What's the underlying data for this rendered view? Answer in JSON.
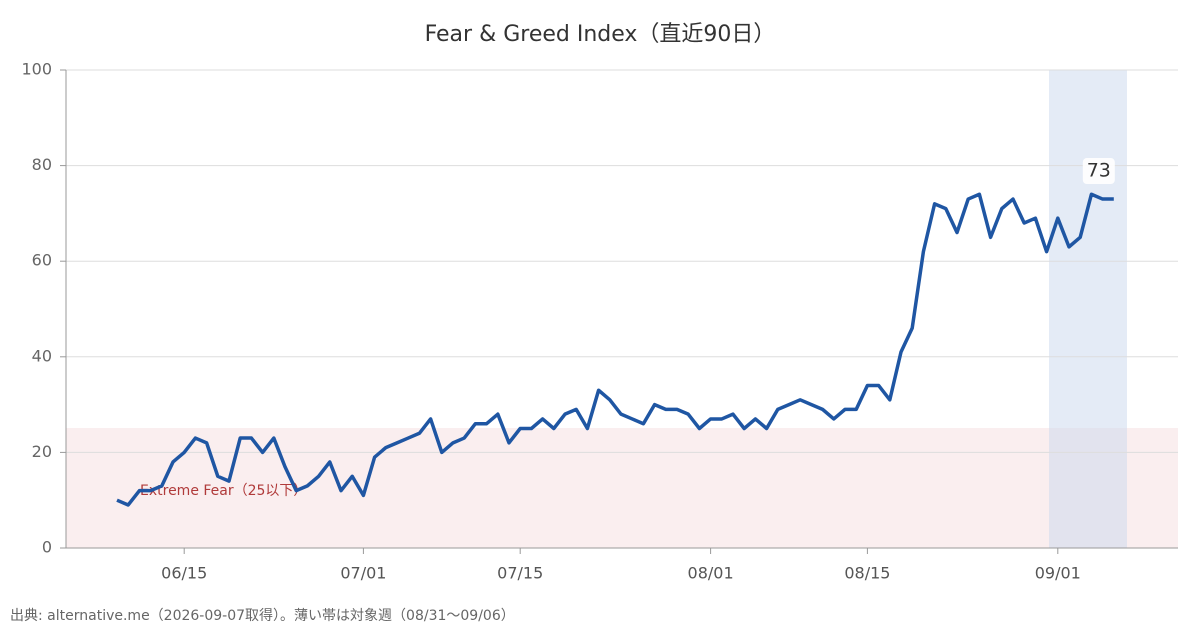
{
  "chart_data": {
    "type": "line",
    "title": "Fear & Greed Index（直近90日）",
    "band_label": "Extreme Fear（25以下）",
    "note": "出典: alternative.me（2026-09-07取得）。薄い帯は対象週（08/31～09/06）",
    "categories": [
      null,
      null,
      null,
      null,
      null,
      null,
      "06/15",
      null,
      null,
      null,
      null,
      null,
      null,
      null,
      null,
      null,
      null,
      null,
      null,
      null,
      null,
      null,
      "07/01",
      null,
      null,
      null,
      null,
      null,
      null,
      null,
      null,
      null,
      null,
      null,
      null,
      null,
      "07/15",
      null,
      null,
      null,
      null,
      null,
      null,
      null,
      null,
      null,
      null,
      null,
      null,
      null,
      null,
      null,
      null,
      "08/01",
      null,
      null,
      null,
      null,
      null,
      null,
      null,
      null,
      null,
      null,
      null,
      null,
      null,
      "08/15",
      null,
      null,
      null,
      null,
      null,
      null,
      null,
      null,
      null,
      null,
      null,
      null,
      null,
      null,
      null,
      null,
      "09/01",
      null,
      null,
      null,
      null,
      null
    ],
    "values": [
      10,
      9,
      12,
      12,
      13,
      18,
      20,
      23,
      22,
      15,
      14,
      23,
      23,
      20,
      23,
      17,
      12,
      13,
      15,
      18,
      12,
      15,
      11,
      19,
      21,
      22,
      23,
      24,
      27,
      20,
      22,
      23,
      26,
      26,
      28,
      22,
      25,
      25,
      27,
      25,
      28,
      29,
      25,
      33,
      31,
      28,
      27,
      26,
      30,
      29,
      29,
      28,
      25,
      27,
      27,
      28,
      25,
      27,
      25,
      29,
      30,
      31,
      30,
      29,
      27,
      29,
      29,
      34,
      34,
      31,
      41,
      46,
      62,
      72,
      71,
      66,
      73,
      74,
      65,
      71,
      73,
      68,
      69,
      62,
      69,
      63,
      65,
      74,
      73,
      73
    ],
    "color": "#1f56a3",
    "ylim": [
      0,
      100
    ],
    "yticks": [
      0,
      20,
      40,
      60,
      80,
      100
    ],
    "grid": true
  }
}
